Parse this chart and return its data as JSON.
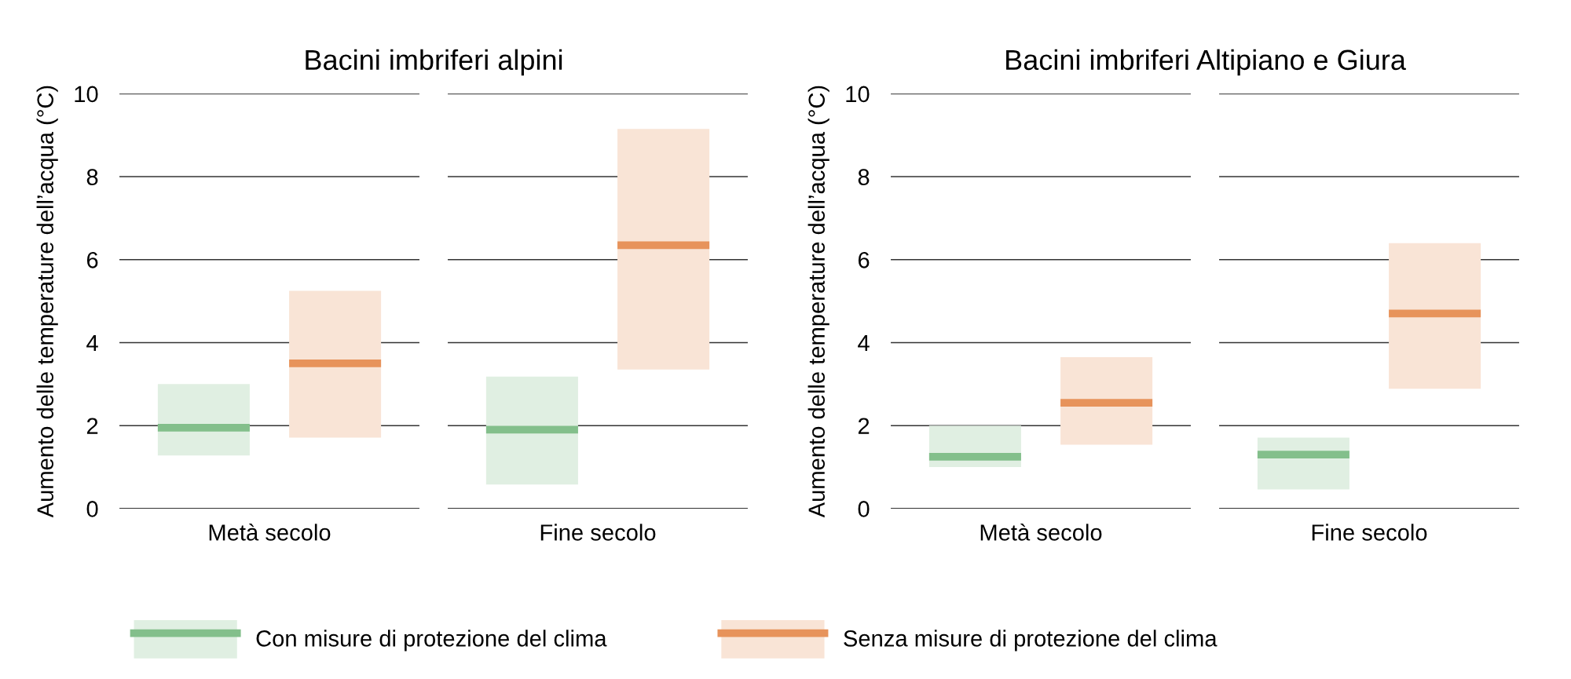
{
  "chart_data": [
    {
      "type": "box",
      "title": "Bacini imbriferi alpini",
      "ylabel": "Aumento delle temperature dell’acqua (°C)",
      "categories": [
        "Metà secolo",
        "Fine secolo"
      ],
      "ylim": [
        0,
        10
      ],
      "yticks": [
        0,
        2,
        4,
        6,
        8,
        10
      ],
      "grid": "y",
      "legend": "bottom",
      "series": [
        {
          "name": "Con misure di protezione del clima",
          "color": "#e0efe2",
          "boxes": [
            {
              "q1": 1.28,
              "median": 1.95,
              "q3": 3.0
            },
            {
              "q1": 0.58,
              "median": 1.9,
              "q3": 3.18
            }
          ]
        },
        {
          "name": "Senza misure di protezione del clima",
          "color": "#f9e4d6",
          "boxes": [
            {
              "q1": 1.71,
              "median": 3.5,
              "q3": 5.25
            },
            {
              "q1": 3.35,
              "median": 6.35,
              "q3": 9.15
            }
          ]
        }
      ]
    },
    {
      "type": "box",
      "title": "Bacini imbriferi Altipiano e Giura",
      "ylabel": "Aumento delle temperature dell’acqua (°C)",
      "categories": [
        "Metà secolo",
        "Fine secolo"
      ],
      "ylim": [
        0,
        10
      ],
      "yticks": [
        0,
        2,
        4,
        6,
        8,
        10
      ],
      "grid": "y",
      "series": [
        {
          "color": "#e0efe2",
          "boxes": [
            {
              "q1": 1.0,
              "median": 1.25,
              "q3": 2.0
            },
            {
              "q1": 0.46,
              "median": 1.3,
              "q3": 1.71
            }
          ]
        },
        {
          "color": "#f9e4d6",
          "boxes": [
            {
              "q1": 1.54,
              "median": 2.55,
              "q3": 3.65
            },
            {
              "q1": 2.89,
              "median": 4.7,
              "q3": 6.4
            }
          ]
        }
      ]
    }
  ]
}
